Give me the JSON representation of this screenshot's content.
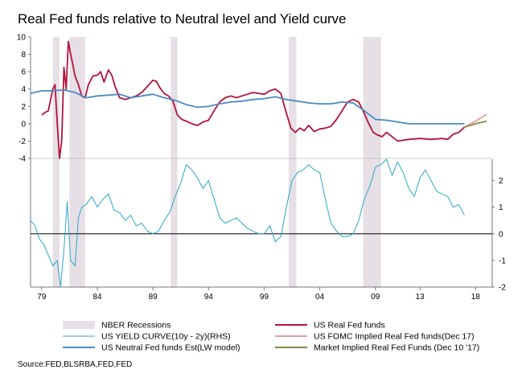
{
  "chart_data": {
    "type": "line",
    "title": "Real Fed funds relative to Neutral level and Yield curve",
    "x_ticks": [
      "79",
      "84",
      "89",
      "94",
      "99",
      "04",
      "09",
      "13",
      "18"
    ],
    "x_tick_years": [
      1979,
      1984,
      1989,
      1994,
      1999,
      2004,
      2009,
      2013,
      2018
    ],
    "xlim": [
      1978,
      2019.5
    ],
    "top_panel": {
      "ylim": [
        -4,
        10
      ],
      "y_ticks": [
        "10",
        "8",
        "6",
        "4",
        "2",
        "0",
        "-2",
        "-4"
      ],
      "y_tick_values": [
        10,
        8,
        6,
        4,
        2,
        0,
        -2,
        -4
      ]
    },
    "bottom_panel": {
      "ylim": [
        -2,
        2.8
      ],
      "y_ticks": [
        "2",
        "1",
        "0",
        "-1",
        "-2"
      ],
      "y_tick_values": [
        2,
        1,
        0,
        -1,
        -2
      ]
    },
    "recessions": [
      [
        1980.0,
        1980.6
      ],
      [
        1981.5,
        1982.9
      ],
      [
        1990.6,
        1991.2
      ],
      [
        2001.2,
        2001.9
      ],
      [
        2007.9,
        2009.5
      ]
    ],
    "series": [
      {
        "name": "US Real Fed funds",
        "color": "#b4123a",
        "panel": "top",
        "x": [
          1979.0,
          1979.3,
          1979.6,
          1980.0,
          1980.2,
          1980.4,
          1980.6,
          1980.8,
          1981.0,
          1981.2,
          1981.4,
          1981.6,
          1981.8,
          1982.0,
          1982.3,
          1982.6,
          1982.9,
          1983.2,
          1983.6,
          1984.0,
          1984.3,
          1984.6,
          1985.0,
          1985.3,
          1985.6,
          1986.0,
          1986.5,
          1987.0,
          1987.5,
          1988.0,
          1988.5,
          1989.0,
          1989.3,
          1989.6,
          1990.0,
          1990.4,
          1990.8,
          1991.2,
          1991.6,
          1992.0,
          1992.5,
          1993.0,
          1993.5,
          1994.0,
          1994.5,
          1995.0,
          1995.5,
          1996.0,
          1996.5,
          1997.0,
          1997.5,
          1998.0,
          1998.5,
          1999.0,
          1999.5,
          2000.0,
          2000.5,
          2001.0,
          2001.4,
          2001.8,
          2002.2,
          2002.6,
          2003.0,
          2003.5,
          2004.0,
          2004.5,
          2005.0,
          2005.5,
          2006.0,
          2006.5,
          2007.0,
          2007.5,
          2008.0,
          2008.4,
          2008.8,
          2009.2,
          2009.6,
          2010.0,
          2011.0,
          2012.0,
          2013.0,
          2014.0,
          2015.0,
          2015.5,
          2016.0,
          2016.5,
          2017.0
        ],
        "values": [
          1.0,
          1.3,
          1.5,
          4.0,
          4.5,
          0.0,
          -4.0,
          -2.0,
          6.5,
          4.0,
          9.5,
          8.0,
          6.8,
          5.5,
          4.5,
          3.2,
          3.0,
          4.5,
          5.5,
          5.6,
          6.0,
          4.8,
          6.2,
          5.6,
          4.3,
          3.0,
          2.8,
          3.0,
          3.2,
          3.6,
          4.3,
          5.0,
          4.9,
          4.2,
          3.5,
          3.2,
          2.6,
          1.0,
          0.5,
          0.3,
          0.0,
          -0.2,
          0.2,
          0.4,
          1.5,
          2.5,
          3.0,
          3.2,
          3.0,
          3.2,
          3.4,
          3.6,
          3.5,
          3.4,
          3.8,
          4.0,
          3.5,
          1.2,
          -0.5,
          -1.0,
          -0.5,
          -0.8,
          -0.2,
          -0.9,
          -0.6,
          -0.5,
          -0.3,
          0.5,
          1.5,
          2.5,
          2.8,
          2.5,
          1.2,
          0.0,
          -1.0,
          -1.3,
          -1.5,
          -1.0,
          -2.0,
          -1.8,
          -1.7,
          -1.8,
          -1.7,
          -1.8,
          -1.2,
          -1.0,
          -0.4
        ]
      },
      {
        "name": "US Neutral Fed funds Est(LW model)",
        "color": "#4a8ac4",
        "panel": "top",
        "x": [
          1978.0,
          1979.0,
          1980.0,
          1981.0,
          1982.0,
          1983.0,
          1984.0,
          1985.0,
          1986.0,
          1987.0,
          1988.0,
          1989.0,
          1990.0,
          1991.0,
          1992.0,
          1993.0,
          1994.0,
          1995.0,
          1996.0,
          1997.0,
          1998.0,
          1999.0,
          2000.0,
          2001.0,
          2002.0,
          2003.0,
          2004.0,
          2005.0,
          2006.0,
          2007.0,
          2008.0,
          2009.0,
          2010.0,
          2011.0,
          2012.0,
          2013.0,
          2014.0,
          2015.0,
          2016.0,
          2017.0
        ],
        "values": [
          3.5,
          3.8,
          3.8,
          3.9,
          3.6,
          3.0,
          3.2,
          3.3,
          3.4,
          3.0,
          3.2,
          3.4,
          3.0,
          2.7,
          2.2,
          1.9,
          2.0,
          2.3,
          2.5,
          2.6,
          2.8,
          2.9,
          3.1,
          2.8,
          2.6,
          2.4,
          2.3,
          2.3,
          2.5,
          2.4,
          1.5,
          0.5,
          0.4,
          0.2,
          0.0,
          0.0,
          0.0,
          0.0,
          0.0,
          0.0
        ]
      },
      {
        "name": "US FOMC Implied Real Fed funds(Dec 17)",
        "color": "#e0a0a0",
        "panel": "top",
        "x": [
          2017.0,
          2018.0,
          2019.0
        ],
        "values": [
          -0.4,
          0.3,
          1.1
        ]
      },
      {
        "name": "Market Implied Real Fed Funds (Dec 10 '17)",
        "color": "#8a8a4a",
        "panel": "top",
        "x": [
          2017.0,
          2018.0,
          2019.0
        ],
        "values": [
          -0.4,
          0.0,
          0.3
        ]
      },
      {
        "name": "US YIELD CURVE(10y - 2y)(RHS)",
        "color": "#2aa7c9",
        "panel": "bottom",
        "x": [
          1978.0,
          1978.4,
          1978.8,
          1979.2,
          1979.6,
          1980.0,
          1980.4,
          1980.7,
          1981.0,
          1981.3,
          1981.6,
          1982.0,
          1982.3,
          1982.6,
          1983.0,
          1983.5,
          1984.0,
          1984.5,
          1985.0,
          1985.5,
          1986.0,
          1986.5,
          1987.0,
          1987.5,
          1988.0,
          1988.5,
          1989.0,
          1989.5,
          1990.0,
          1990.5,
          1991.0,
          1991.5,
          1992.0,
          1992.5,
          1993.0,
          1993.5,
          1994.0,
          1994.5,
          1995.0,
          1995.5,
          1996.0,
          1996.5,
          1997.0,
          1997.5,
          1998.0,
          1998.5,
          1999.0,
          1999.5,
          2000.0,
          2000.5,
          2001.0,
          2001.5,
          2002.0,
          2002.5,
          2003.0,
          2003.5,
          2004.0,
          2004.5,
          2005.0,
          2005.5,
          2006.0,
          2006.5,
          2007.0,
          2007.5,
          2008.0,
          2008.5,
          2009.0,
          2009.5,
          2010.0,
          2010.5,
          2011.0,
          2011.5,
          2012.0,
          2012.5,
          2013.0,
          2013.5,
          2014.0,
          2014.5,
          2015.0,
          2015.5,
          2016.0,
          2016.5,
          2017.0
        ],
        "values": [
          0.5,
          0.3,
          -0.2,
          -0.4,
          -0.8,
          -1.2,
          -1.0,
          -2.0,
          -0.6,
          1.2,
          -1.0,
          -1.2,
          0.6,
          1.0,
          1.1,
          1.4,
          1.0,
          1.3,
          1.5,
          0.9,
          0.8,
          0.5,
          0.7,
          0.3,
          0.4,
          0.1,
          0.0,
          0.1,
          0.5,
          0.8,
          1.4,
          1.9,
          2.6,
          2.4,
          2.1,
          1.7,
          2.0,
          1.3,
          0.6,
          0.4,
          0.5,
          0.6,
          0.4,
          0.2,
          0.1,
          0.0,
          0.0,
          0.3,
          -0.3,
          -0.1,
          1.0,
          2.0,
          2.3,
          2.4,
          2.6,
          2.4,
          2.3,
          1.3,
          0.4,
          0.1,
          -0.1,
          -0.1,
          0.0,
          0.5,
          1.3,
          1.8,
          2.5,
          2.6,
          2.8,
          2.2,
          2.7,
          2.3,
          1.7,
          1.4,
          2.1,
          2.4,
          2.0,
          1.6,
          1.5,
          1.4,
          1.0,
          1.1,
          0.7
        ]
      }
    ]
  },
  "legend": [
    {
      "label": "NBER Recessions",
      "kind": "box",
      "color": "#e6e0e6"
    },
    {
      "label": "US Real Fed funds",
      "kind": "line",
      "color": "#b4123a"
    },
    {
      "label": "US YIELD CURVE(10y - 2y)(RHS)",
      "kind": "line",
      "color": "#2aa7c9"
    },
    {
      "label": "US FOMC Implied Real Fed funds(Dec 17)",
      "kind": "line",
      "color": "#e0a0a0"
    },
    {
      "label": "US Neutral Fed funds Est(LW model)",
      "kind": "line",
      "color": "#4a8ac4"
    },
    {
      "label": "Market Implied Real Fed Funds (Dec 10 '17)",
      "kind": "line",
      "color": "#8a8a4a"
    }
  ],
  "source": "Source:FED,BLSRBA,FED,FED"
}
